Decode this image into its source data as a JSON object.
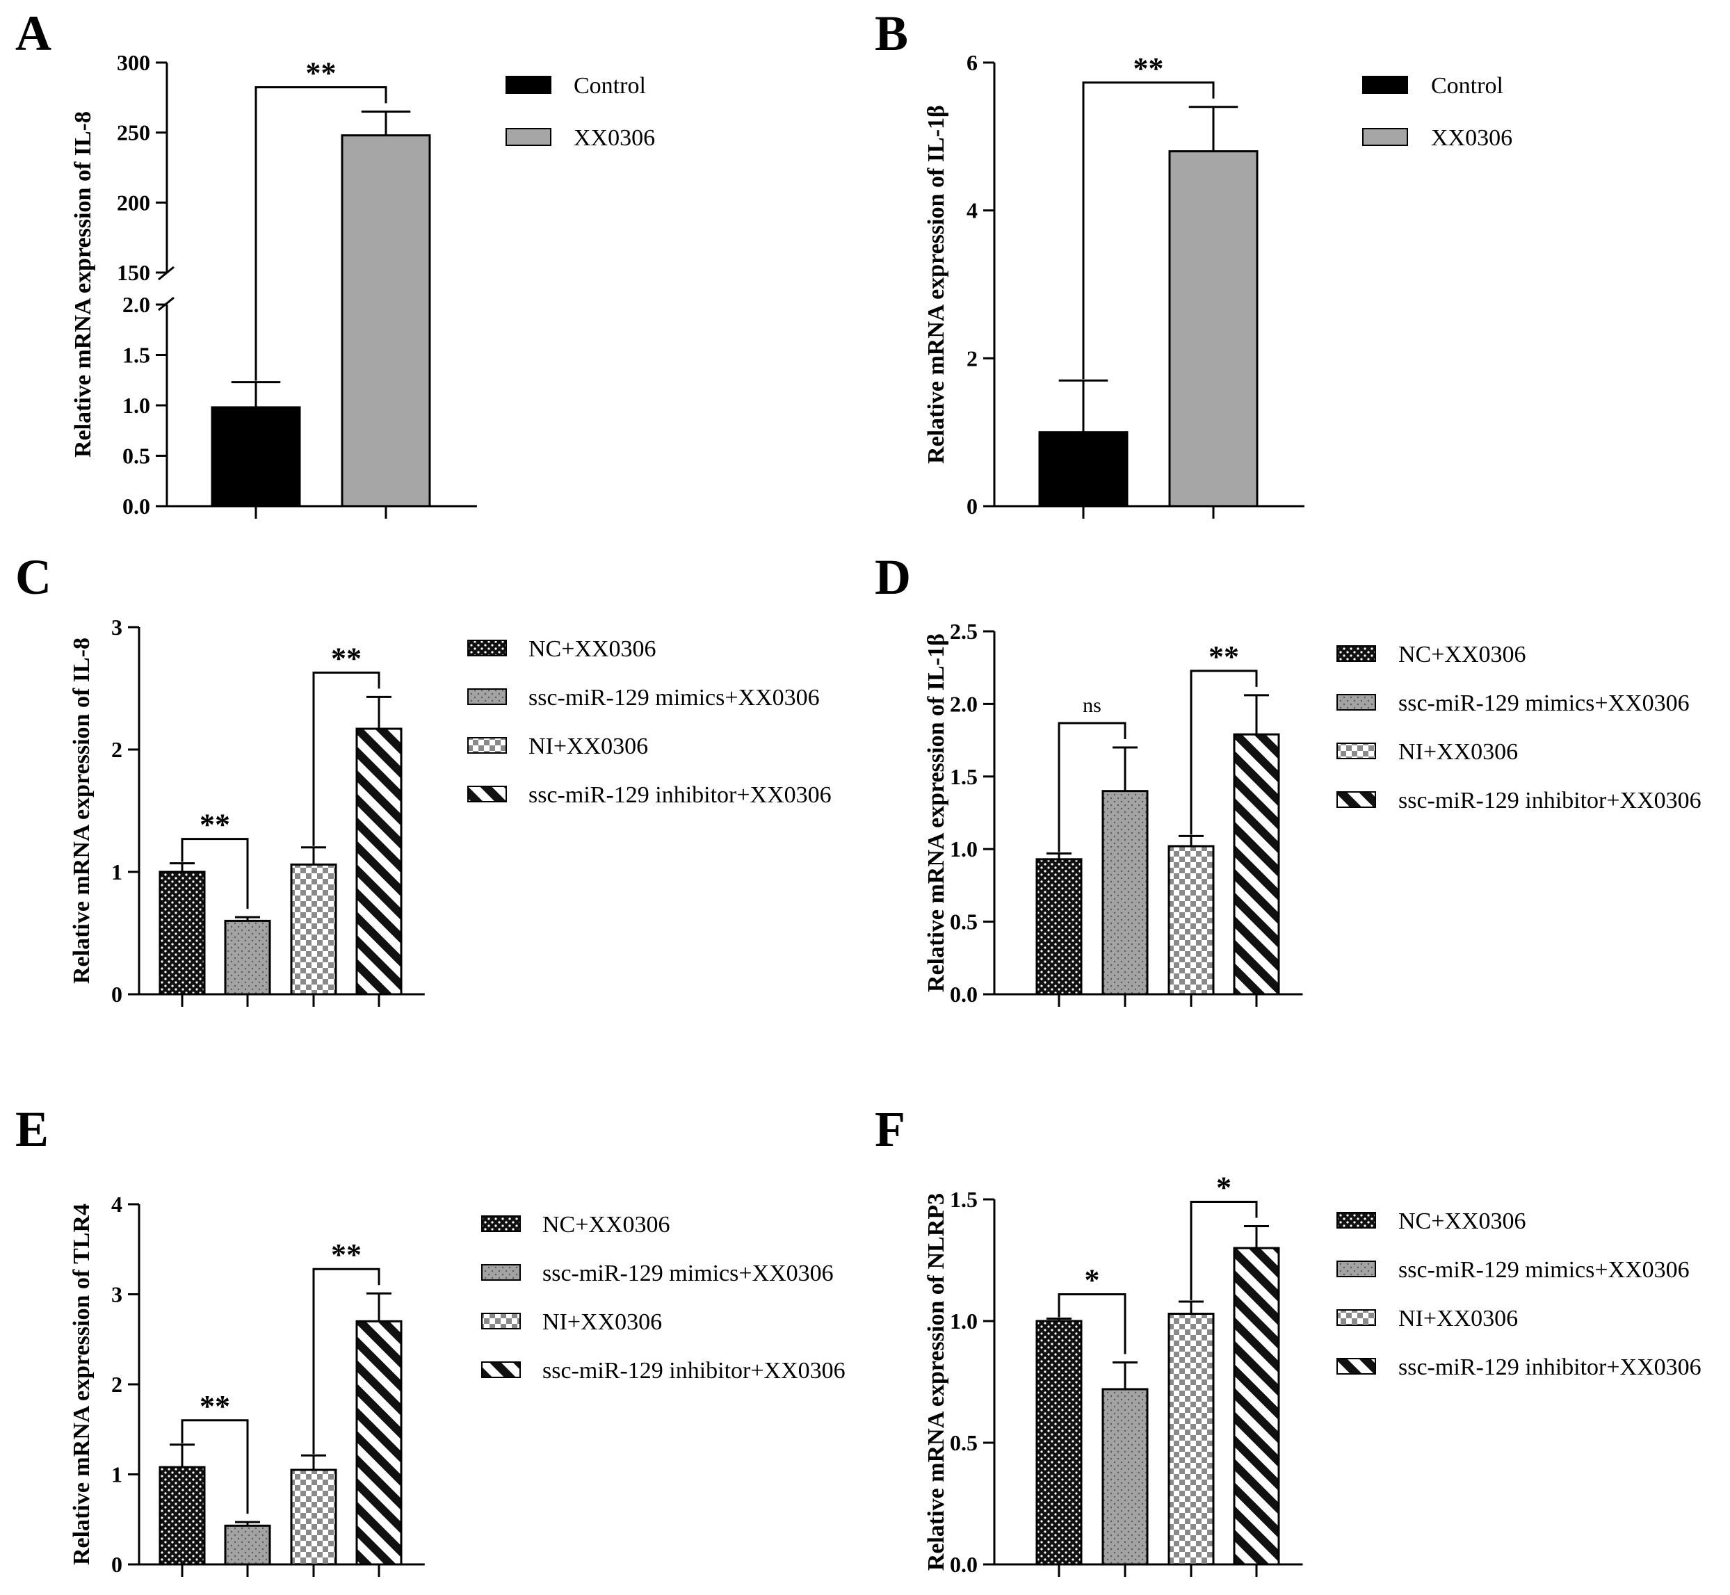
{
  "colors": {
    "control": "#000000",
    "treatment": "#a6a6a6",
    "nc": "#111111",
    "mimics": "#999999",
    "ni": "#ffffff",
    "inhibitor": "#ffffff"
  },
  "chart_data": [
    {
      "panel": "A",
      "type": "bar",
      "ylabel": "Relative mRNA expression of IL-8",
      "categories": [
        "Control",
        "XX0306"
      ],
      "values": [
        0.98,
        248
      ],
      "errors": [
        0.25,
        17
      ],
      "fills": [
        "control",
        "treatment"
      ],
      "legend": [
        "Control",
        "XX0306"
      ],
      "broken_axis": true,
      "ylim_lower": [
        0,
        2.0
      ],
      "ylim_upper": [
        150,
        300
      ],
      "yticks_lower": [
        "0.0",
        "0.5",
        "1.0",
        "1.5",
        "2.0"
      ],
      "yticks_upper": [
        "150",
        "200",
        "250",
        "300"
      ],
      "significance": [
        {
          "from": 0,
          "to": 1,
          "label": "**"
        }
      ]
    },
    {
      "panel": "B",
      "type": "bar",
      "ylabel": "Relative mRNA expression of IL-1β",
      "categories": [
        "Control",
        "XX0306"
      ],
      "values": [
        1.0,
        4.8
      ],
      "errors": [
        0.7,
        0.6
      ],
      "fills": [
        "control",
        "treatment"
      ],
      "legend": [
        "Control",
        "XX0306"
      ],
      "ylim": [
        0,
        6
      ],
      "yticks": [
        "0",
        "2",
        "4",
        "6"
      ],
      "significance": [
        {
          "from": 0,
          "to": 1,
          "label": "**"
        }
      ]
    },
    {
      "panel": "C",
      "type": "bar",
      "ylabel": "Relative mRNA expression of IL-8",
      "categories": [
        "NC+XX0306",
        "ssc-miR-129 mimics+XX0306",
        "NI+XX0306",
        "ssc-miR-129 inhibitor+XX0306"
      ],
      "values": [
        1.0,
        0.6,
        1.06,
        2.17
      ],
      "errors": [
        0.07,
        0.03,
        0.14,
        0.26
      ],
      "fills": [
        "nc",
        "mimics",
        "ni",
        "inhibitor"
      ],
      "legend": [
        "NC+XX0306",
        "ssc-miR-129 mimics+XX0306",
        "NI+XX0306",
        "ssc-miR-129 inhibitor+XX0306"
      ],
      "ylim": [
        0,
        3
      ],
      "yticks": [
        "0",
        "1",
        "2",
        "3"
      ],
      "significance": [
        {
          "from": 0,
          "to": 1,
          "label": "**"
        },
        {
          "from": 2,
          "to": 3,
          "label": "**"
        }
      ]
    },
    {
      "panel": "D",
      "type": "bar",
      "ylabel": "Relative mRNA expression of IL-1β",
      "categories": [
        "NC+XX0306",
        "ssc-miR-129 mimics+XX0306",
        "NI+XX0306",
        "ssc-miR-129 inhibitor+XX0306"
      ],
      "values": [
        0.93,
        1.4,
        1.02,
        1.79
      ],
      "errors": [
        0.04,
        0.3,
        0.07,
        0.27
      ],
      "fills": [
        "nc",
        "mimics",
        "ni",
        "inhibitor"
      ],
      "legend": [
        "NC+XX0306",
        "ssc-miR-129 mimics+XX0306",
        "NI+XX0306",
        "ssc-miR-129 inhibitor+XX0306"
      ],
      "ylim": [
        0,
        2.5
      ],
      "yticks": [
        "0.0",
        "0.5",
        "1.0",
        "1.5",
        "2.0",
        "2.5"
      ],
      "significance": [
        {
          "from": 0,
          "to": 1,
          "label": "ns"
        },
        {
          "from": 2,
          "to": 3,
          "label": "**"
        }
      ]
    },
    {
      "panel": "E",
      "type": "bar",
      "ylabel": "Relative mRNA expression of TLR4",
      "categories": [
        "NC+XX0306",
        "ssc-miR-129 mimics+XX0306",
        "NI+XX0306",
        "ssc-miR-129 inhibitor+XX0306"
      ],
      "values": [
        1.08,
        0.43,
        1.05,
        2.7
      ],
      "errors": [
        0.25,
        0.04,
        0.16,
        0.31
      ],
      "fills": [
        "nc",
        "mimics",
        "ni",
        "inhibitor"
      ],
      "legend": [
        "NC+XX0306",
        "ssc-miR-129 mimics+XX0306",
        "NI+XX0306",
        "ssc-miR-129 inhibitor+XX0306"
      ],
      "ylim": [
        0,
        4
      ],
      "yticks": [
        "0",
        "1",
        "2",
        "3",
        "4"
      ],
      "significance": [
        {
          "from": 0,
          "to": 1,
          "label": "**"
        },
        {
          "from": 2,
          "to": 3,
          "label": "**"
        }
      ]
    },
    {
      "panel": "F",
      "type": "bar",
      "ylabel": "Relative mRNA expression of NLRP3",
      "categories": [
        "NC+XX0306",
        "ssc-miR-129 mimics+XX0306",
        "NI+XX0306",
        "ssc-miR-129 inhibitor+XX0306"
      ],
      "values": [
        1.0,
        0.72,
        1.03,
        1.3
      ],
      "errors": [
        0.01,
        0.11,
        0.05,
        0.09
      ],
      "fills": [
        "nc",
        "mimics",
        "ni",
        "inhibitor"
      ],
      "legend": [
        "NC+XX0306",
        "ssc-miR-129 mimics+XX0306",
        "NI+XX0306",
        "ssc-miR-129 inhibitor+XX0306"
      ],
      "ylim": [
        0,
        1.5
      ],
      "yticks": [
        "0.0",
        "0.5",
        "1.0",
        "1.5"
      ],
      "significance": [
        {
          "from": 0,
          "to": 1,
          "label": "*"
        },
        {
          "from": 2,
          "to": 3,
          "label": "*"
        }
      ]
    }
  ]
}
